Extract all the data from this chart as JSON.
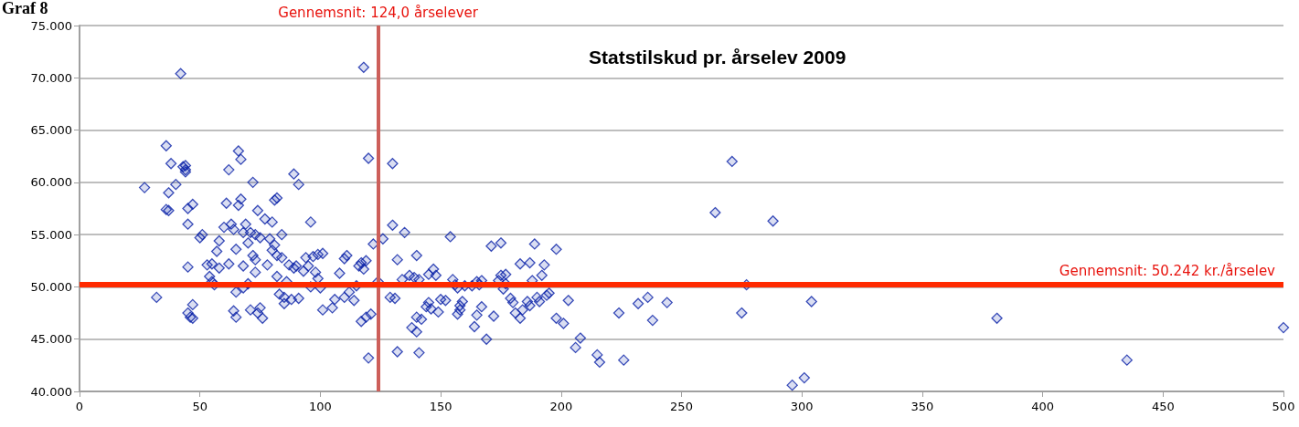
{
  "chart_data": {
    "type": "scatter",
    "title": "Statstilskud pr. årselev 2009",
    "annotations": [
      "Graf 8"
    ],
    "xlim": [
      0,
      500
    ],
    "xticks": [
      0,
      50,
      100,
      150,
      200,
      250,
      300,
      350,
      400,
      450,
      500
    ],
    "ylim": [
      40000,
      75000
    ],
    "yticks": [
      {
        "value": 40000,
        "label": "40.000"
      },
      {
        "value": 45000,
        "label": "45.000"
      },
      {
        "value": 50000,
        "label": "50.000"
      },
      {
        "value": 55000,
        "label": "55.000"
      },
      {
        "value": 60000,
        "label": "60.000"
      },
      {
        "value": 65000,
        "label": "65.000"
      },
      {
        "value": 70000,
        "label": "70.000"
      },
      {
        "value": 75000,
        "label": "75.000"
      }
    ],
    "grid": "y",
    "marker": "diamond",
    "ref_lines": [
      {
        "axis": "x",
        "value": 124,
        "label": "Gennemsnit: 124,0 årselever",
        "color": "#cd5f5a"
      },
      {
        "axis": "y",
        "value": 50242,
        "label": "Gennemsnit: 50.242 kr./årselev",
        "color": "#ff2a00"
      }
    ],
    "series": [
      {
        "color": "#0a22a8",
        "x": [
          27,
          32,
          36,
          37,
          36,
          37,
          38,
          40,
          42,
          43,
          44,
          44,
          44,
          45,
          45,
          45,
          45,
          46,
          47,
          47,
          47,
          50,
          51,
          53,
          54,
          55,
          55,
          56,
          57,
          58,
          58,
          60,
          61,
          62,
          62,
          63,
          64,
          64,
          65,
          65,
          65,
          66,
          66,
          67,
          67,
          68,
          68,
          68,
          69,
          70,
          70,
          71,
          71,
          72,
          72,
          73,
          73,
          73,
          74,
          74,
          75,
          75,
          76,
          77,
          78,
          79,
          80,
          80,
          81,
          81,
          82,
          82,
          82,
          83,
          84,
          84,
          85,
          85,
          86,
          87,
          88,
          89,
          89,
          90,
          91,
          91,
          93,
          94,
          95,
          96,
          96,
          97,
          98,
          99,
          99,
          100,
          101,
          101,
          105,
          106,
          108,
          110,
          110,
          111,
          112,
          114,
          115,
          116,
          117,
          117,
          118,
          118,
          119,
          119,
          120,
          120,
          121,
          122,
          124,
          126,
          129,
          130,
          130,
          131,
          132,
          132,
          134,
          135,
          137,
          138,
          139,
          140,
          140,
          140,
          141,
          141,
          142,
          144,
          145,
          145,
          146,
          147,
          148,
          149,
          150,
          152,
          154,
          155,
          156,
          157,
          157,
          158,
          158,
          159,
          160,
          163,
          164,
          165,
          165,
          166,
          167,
          167,
          169,
          171,
          172,
          174,
          175,
          175,
          176,
          177,
          177,
          179,
          180,
          181,
          183,
          183,
          184,
          186,
          187,
          187,
          188,
          189,
          190,
          191,
          192,
          193,
          194,
          195,
          198,
          198,
          201,
          203,
          206,
          208,
          215,
          216,
          224,
          226,
          232,
          236,
          238,
          244,
          264,
          271,
          275,
          277,
          288,
          296,
          301,
          304,
          381,
          435,
          500
        ],
        "values": [
          59500,
          49000,
          57400,
          57300,
          63500,
          59000,
          61800,
          59800,
          70400,
          61500,
          61000,
          61200,
          61600,
          56000,
          57500,
          51900,
          47500,
          47100,
          48300,
          57900,
          47000,
          54700,
          55000,
          52100,
          51000,
          52200,
          50500,
          50200,
          53400,
          54400,
          51800,
          55700,
          58000,
          52200,
          61200,
          56000,
          55500,
          47700,
          47100,
          49500,
          53600,
          57800,
          63000,
          62200,
          58400,
          55200,
          52000,
          49900,
          56000,
          54200,
          50300,
          47800,
          55200,
          60000,
          53000,
          52600,
          51400,
          55000,
          47500,
          57300,
          54700,
          48000,
          47000,
          56500,
          52100,
          54600,
          53500,
          56200,
          58300,
          54000,
          58500,
          53000,
          51000,
          49300,
          55000,
          52800,
          49000,
          48400,
          50500,
          52100,
          48800,
          51800,
          60800,
          52000,
          48900,
          59800,
          51500,
          52800,
          52000,
          56200,
          50000,
          52900,
          51400,
          50800,
          53100,
          49900,
          53200,
          47800,
          48000,
          48800,
          51300,
          52700,
          49000,
          53000,
          49500,
          48700,
          50100,
          52000,
          46700,
          52300,
          51700,
          71000,
          52500,
          47100,
          62300,
          43200,
          47400,
          54100,
          50500,
          54600,
          49000,
          55900,
          61800,
          48900,
          43800,
          52600,
          50700,
          55200,
          51100,
          46100,
          50900,
          47100,
          45700,
          53000,
          43700,
          50700,
          46900,
          48100,
          51200,
          48500,
          47900,
          51700,
          51100,
          47600,
          48800,
          48700,
          54800,
          50700,
          50200,
          49900,
          47400,
          48200,
          47800,
          48600,
          50100,
          50100,
          46200,
          47300,
          50500,
          50200,
          50600,
          48100,
          45000,
          53900,
          47200,
          50600,
          51100,
          54200,
          49800,
          50300,
          51200,
          48900,
          48500,
          47500,
          52200,
          47000,
          47800,
          48600,
          48200,
          52300,
          50600,
          54100,
          49000,
          48600,
          51100,
          52100,
          49200,
          49400,
          53600,
          47000,
          46500,
          48700,
          44200,
          45100,
          43500,
          42800,
          47500,
          43000,
          48400,
          49000,
          46800,
          48500,
          57100,
          62000,
          47500,
          50200,
          56300,
          40600,
          41300,
          48600,
          47000,
          43000,
          46100
        ]
      }
    ]
  }
}
